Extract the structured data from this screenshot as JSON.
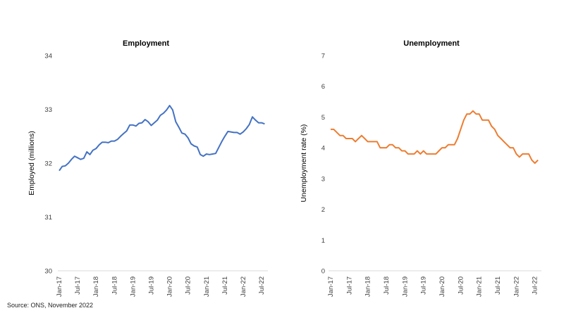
{
  "source": "Source: ONS, November 2022",
  "chart_data": [
    {
      "type": "line",
      "title": "Employment",
      "xlabel": "",
      "ylabel": "Employed (millions)",
      "ylim": [
        30,
        34
      ],
      "yticks": [
        "30",
        "31",
        "32",
        "33",
        "34"
      ],
      "xticks": [
        "Jan-17",
        "Jul-17",
        "Jan-18",
        "Jul-18",
        "Jan-19",
        "Jul-19",
        "Jan-20",
        "Jul-20",
        "Jan-21",
        "Jul-21",
        "Jan-22",
        "Jul-22"
      ],
      "grid": false,
      "color": "#4472C4",
      "series": [
        {
          "name": "Employment",
          "start": "Jan-17",
          "frequency": "monthly",
          "values": [
            31.86,
            31.94,
            31.95,
            32.0,
            32.07,
            32.13,
            32.1,
            32.07,
            32.09,
            32.21,
            32.16,
            32.24,
            32.27,
            32.34,
            32.39,
            32.39,
            32.38,
            32.41,
            32.41,
            32.44,
            32.5,
            32.55,
            32.6,
            32.71,
            32.71,
            32.69,
            32.74,
            32.75,
            32.81,
            32.77,
            32.7,
            32.75,
            32.8,
            32.89,
            32.93,
            32.99,
            33.07,
            32.99,
            32.77,
            32.67,
            32.56,
            32.54,
            32.47,
            32.36,
            32.32,
            32.3,
            32.16,
            32.13,
            32.17,
            32.16,
            32.17,
            32.18,
            32.29,
            32.4,
            32.5,
            32.59,
            32.58,
            32.57,
            32.57,
            32.54,
            32.58,
            32.64,
            32.72,
            32.86,
            32.8,
            32.75,
            32.75,
            32.73
          ]
        }
      ]
    },
    {
      "type": "line",
      "title": "Unemployment",
      "xlabel": "",
      "ylabel": "Unemployment rate (%)",
      "ylim": [
        0,
        7
      ],
      "yticks": [
        "0",
        "1",
        "2",
        "3",
        "4",
        "5",
        "6",
        "7"
      ],
      "xticks": [
        "Jan-17",
        "Jul-17",
        "Jan-18",
        "Jul-18",
        "Jan-19",
        "Jul-19",
        "Jan-20",
        "Jul-20",
        "Jan-21",
        "Jul-21",
        "Jan-22",
        "Jul-22"
      ],
      "grid": false,
      "color": "#ED7D31",
      "series": [
        {
          "name": "Unemployment rate",
          "start": "Jan-17",
          "frequency": "monthly",
          "values": [
            4.6,
            4.6,
            4.5,
            4.4,
            4.4,
            4.3,
            4.3,
            4.3,
            4.2,
            4.3,
            4.4,
            4.3,
            4.2,
            4.2,
            4.2,
            4.2,
            4.0,
            4.0,
            4.0,
            4.1,
            4.1,
            4.0,
            4.0,
            3.9,
            3.9,
            3.8,
            3.8,
            3.8,
            3.9,
            3.8,
            3.9,
            3.8,
            3.8,
            3.8,
            3.8,
            3.9,
            4.0,
            4.0,
            4.1,
            4.1,
            4.1,
            4.3,
            4.6,
            4.9,
            5.1,
            5.1,
            5.2,
            5.1,
            5.1,
            4.9,
            4.9,
            4.9,
            4.7,
            4.6,
            4.4,
            4.3,
            4.2,
            4.1,
            4.0,
            4.0,
            3.8,
            3.7,
            3.8,
            3.8,
            3.8,
            3.6,
            3.5,
            3.6
          ]
        }
      ]
    }
  ]
}
